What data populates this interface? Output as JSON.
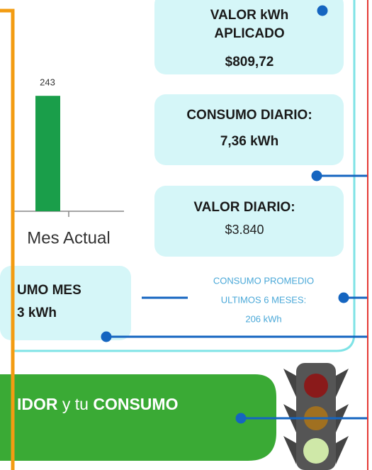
{
  "bar_chart": {
    "value_label": "243",
    "value": 243,
    "category": "Mes Actual"
  },
  "boxes": [
    {
      "lines": [
        "VALOR kWh",
        "APLICADO",
        "$809,72"
      ]
    },
    {
      "lines": [
        "CONSUMO DIARIO:",
        "7,36 kWh"
      ]
    },
    {
      "lines": [
        "VALOR DIARIO:",
        "$3.840"
      ]
    },
    {
      "lines": [
        "UMO MES",
        "3 kWh"
      ]
    }
  ],
  "average": {
    "lines": [
      "CONSUMO PROMEDIO",
      "ULTIMOS 6 MESES:",
      "206 kWh"
    ]
  },
  "banner": {
    "parts": [
      "IDOR",
      " y tu ",
      "CONSUMO"
    ]
  }
}
